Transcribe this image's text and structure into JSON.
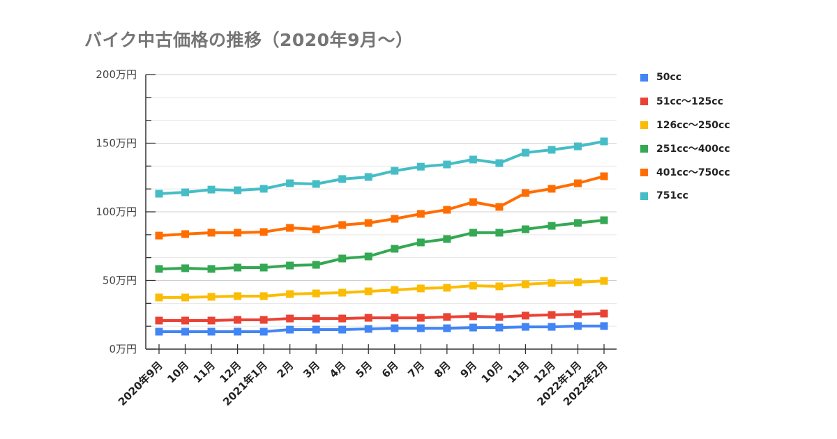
{
  "chart_data": {
    "type": "line",
    "title": "バイク中古価格の推移（2020年9月〜）",
    "xlabel": "",
    "ylabel": "",
    "ylim": [
      0,
      200
    ],
    "yticks": [
      0,
      50,
      100,
      150,
      200
    ],
    "ytick_labels": [
      "0万円",
      "50万円",
      "100万円",
      "150万円",
      "200万円"
    ],
    "grid": true,
    "legend_position": "right",
    "categories": [
      "2020年9月",
      "10月",
      "11月",
      "12月",
      "2021年1月",
      "2月",
      "3月",
      "4月",
      "5月",
      "6月",
      "7月",
      "8月",
      "9月",
      "10月",
      "11月",
      "12月",
      "2022年1月",
      "2022年2月"
    ],
    "series": [
      {
        "name": "50cc",
        "color": "#4285f4",
        "values": [
          12.7,
          12.7,
          12.7,
          12.7,
          12.7,
          14.2,
          14.2,
          14.2,
          14.7,
          15.2,
          15.2,
          15.2,
          15.7,
          15.7,
          16.2,
          16.2,
          16.8,
          16.8
        ]
      },
      {
        "name": "51cc〜125cc",
        "color": "#ea4335",
        "values": [
          20.8,
          20.8,
          20.8,
          21.3,
          21.3,
          22.3,
          22.3,
          22.3,
          22.8,
          22.8,
          22.8,
          23.4,
          23.9,
          23.4,
          24.4,
          24.9,
          25.4,
          25.9
        ]
      },
      {
        "name": "126cc〜250cc",
        "color": "#fbbc04",
        "values": [
          37.6,
          37.6,
          38.1,
          38.6,
          38.6,
          40.1,
          40.6,
          41.1,
          42.1,
          43.1,
          44.2,
          44.7,
          46.2,
          45.7,
          47.2,
          48.2,
          48.7,
          49.7
        ]
      },
      {
        "name": "251cc〜400cc",
        "color": "#34a853",
        "values": [
          58.4,
          58.9,
          58.4,
          59.4,
          59.4,
          60.9,
          61.4,
          66.0,
          67.5,
          73.1,
          77.7,
          80.2,
          84.8,
          84.8,
          87.3,
          89.8,
          91.9,
          93.9
        ]
      },
      {
        "name": "401cc〜750cc",
        "color": "#ff6d01",
        "values": [
          82.7,
          83.8,
          84.8,
          84.8,
          85.3,
          88.3,
          87.3,
          90.4,
          91.9,
          94.9,
          98.5,
          101.5,
          107.1,
          103.6,
          113.7,
          116.8,
          120.8,
          125.9
        ]
      },
      {
        "name": "751cc",
        "color": "#46bdc6",
        "values": [
          113.2,
          114.2,
          116.2,
          115.7,
          116.8,
          120.8,
          120.3,
          123.9,
          125.4,
          129.9,
          132.9,
          134.5,
          138.1,
          135.5,
          143.1,
          145.2,
          147.7,
          151.3
        ]
      }
    ]
  }
}
